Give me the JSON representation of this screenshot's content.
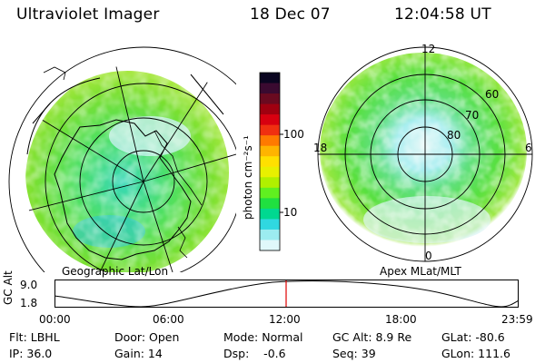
{
  "header": {
    "instrument": "Ultraviolet Imager",
    "date": "18 Dec 07",
    "time": "12:04:58 UT"
  },
  "left_panel": {
    "caption": "Geographic Lat/Lon"
  },
  "right_panel": {
    "caption": "Apex MLat/MLT",
    "mlt_labels": [
      "12",
      "18",
      "6",
      "0"
    ],
    "mlat_labels": [
      "60",
      "70",
      "80"
    ]
  },
  "colorbar": {
    "label": "photon cm⁻²s⁻¹",
    "ticks": [
      "100",
      "10"
    ],
    "colors": [
      "#0a0520",
      "#3a0a30",
      "#6a0a20",
      "#a00010",
      "#d80010",
      "#f03010",
      "#ff7a00",
      "#ffb400",
      "#ffe000",
      "#e8f000",
      "#b0f000",
      "#60f020",
      "#20e040",
      "#00d890",
      "#30d8e0",
      "#9cecf0",
      "#e0f8fa"
    ]
  },
  "orbit_plot": {
    "ylabel": "GC Alt",
    "y_ticks": [
      "9.0",
      "1.8"
    ],
    "x_ticks": [
      "00:00",
      "06:00",
      "12:00",
      "18:00",
      "23:59"
    ],
    "marker_time": "12:00"
  },
  "info": {
    "filter": "Flt: LBHL",
    "ip": "IP: 36.0",
    "door": "Door: Open",
    "gain": "Gain: 14",
    "mode": "Mode: Normal",
    "dsp": "Dsp:    -0.6",
    "gc_alt": "GC Alt: 8.9 Re",
    "seq": "Seq: 39",
    "glat": "GLat: -80.6",
    "glon": "GLon: 111.6"
  }
}
